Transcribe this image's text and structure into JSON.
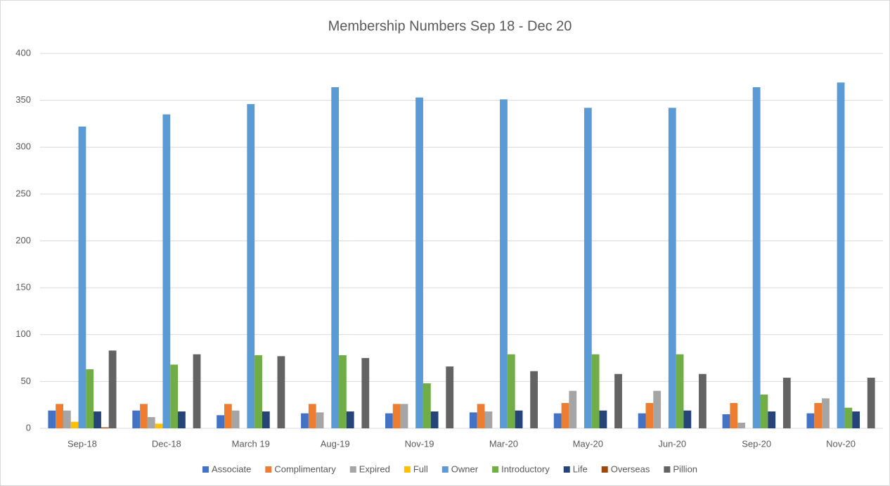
{
  "chart_data": {
    "type": "bar",
    "title": "Membership Numbers Sep 18 - Dec 20",
    "categories": [
      "Sep-18",
      "Dec-18",
      "March 19",
      "Aug-19",
      "Nov-19",
      "Mar-20",
      "May-20",
      "Jun-20",
      "Sep-20",
      "Nov-20"
    ],
    "series": [
      {
        "name": "Associate",
        "color": "#4472c4",
        "values": [
          19,
          19,
          14,
          16,
          16,
          17,
          16,
          16,
          15,
          16
        ]
      },
      {
        "name": "Complimentary",
        "color": "#ed7d31",
        "values": [
          26,
          26,
          26,
          26,
          26,
          26,
          27,
          27,
          27,
          27
        ]
      },
      {
        "name": "Expired",
        "color": "#a5a5a5",
        "values": [
          19,
          12,
          19,
          17,
          26,
          18,
          40,
          40,
          6,
          32
        ]
      },
      {
        "name": "Full",
        "color": "#ffc000",
        "values": [
          7,
          5,
          0,
          0,
          0,
          0,
          0,
          0,
          0,
          0
        ]
      },
      {
        "name": "Owner",
        "color": "#5b9bd5",
        "values": [
          322,
          335,
          346,
          364,
          353,
          351,
          342,
          342,
          364,
          369
        ]
      },
      {
        "name": "Introductory",
        "color": "#70ad47",
        "values": [
          63,
          68,
          78,
          78,
          48,
          79,
          79,
          79,
          36,
          22
        ]
      },
      {
        "name": "Life",
        "color": "#264478",
        "values": [
          18,
          18,
          18,
          18,
          18,
          19,
          19,
          19,
          18,
          18
        ]
      },
      {
        "name": "Overseas",
        "color": "#9e480e",
        "values": [
          1,
          0,
          0,
          0,
          0,
          0,
          0,
          0,
          0,
          0
        ]
      },
      {
        "name": "Pillion",
        "color": "#636363",
        "values": [
          83,
          79,
          77,
          75,
          66,
          61,
          58,
          58,
          54,
          54
        ]
      }
    ],
    "ylim": [
      0,
      400
    ],
    "yticks": [
      0,
      50,
      100,
      150,
      200,
      250,
      300,
      350,
      400
    ],
    "grid": true,
    "legend": "bottom"
  }
}
